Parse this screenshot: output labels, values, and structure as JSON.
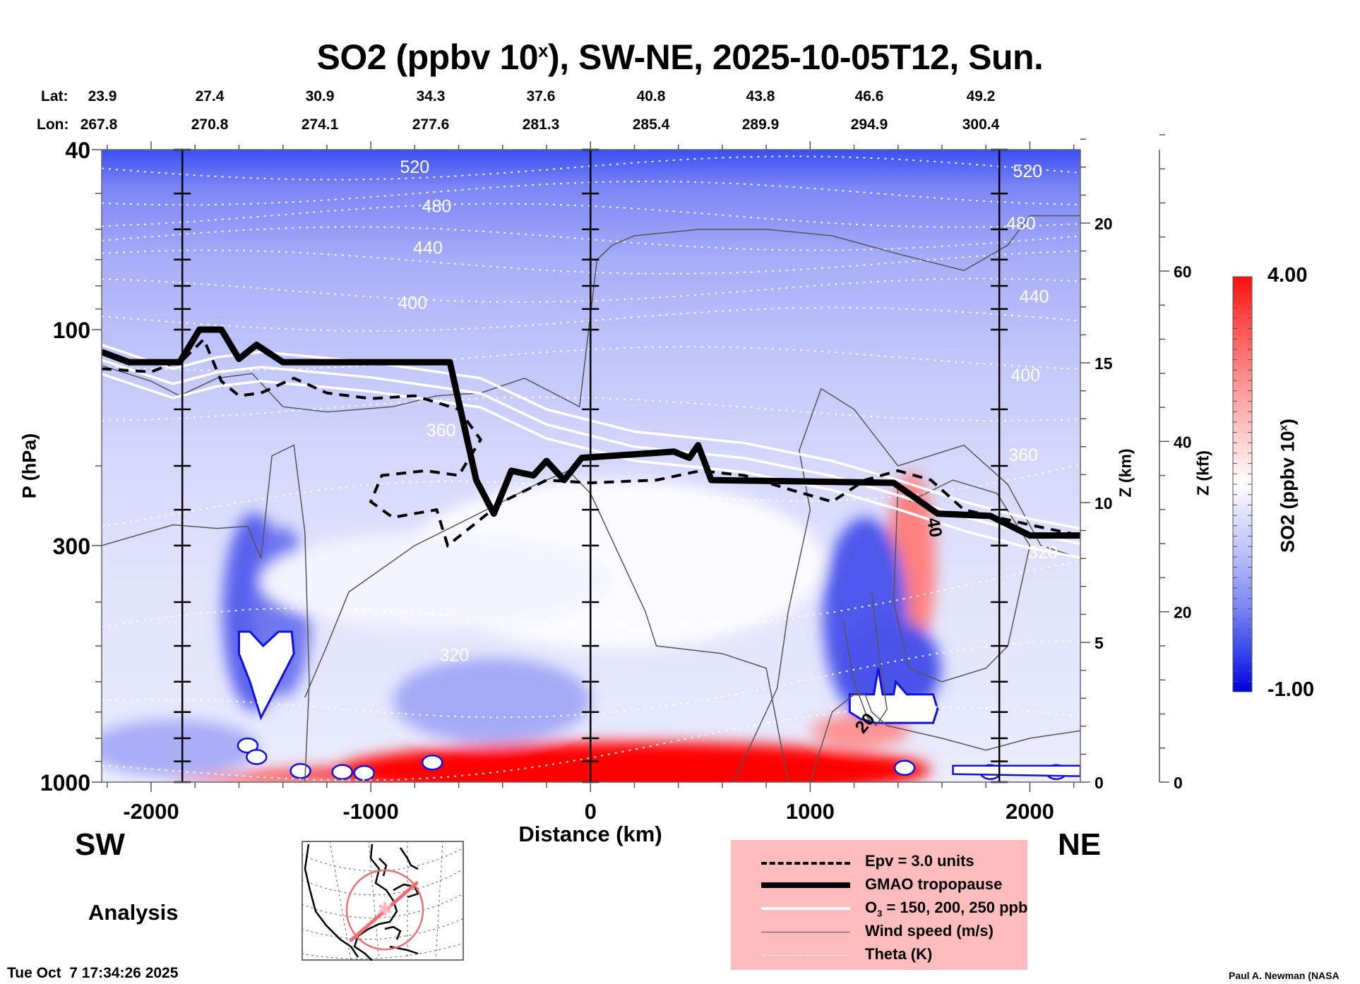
{
  "title": {
    "main": "SO2 (ppbv 10",
    "sup": "x",
    "rest": "), SW-NE, 2025-10-05T12, Sun."
  },
  "coords": {
    "lat_label": "Lat:",
    "lon_label": "Lon:",
    "lat": [
      "23.9",
      "27.4",
      "30.9",
      "34.3",
      "37.6",
      "40.8",
      "43.8",
      "46.6",
      "49.2"
    ],
    "lon": [
      "267.8",
      "270.8",
      "274.1",
      "277.6",
      "281.3",
      "285.4",
      "289.9",
      "294.9",
      "300.4"
    ]
  },
  "chart_data": {
    "type": "heatmap",
    "title": "SO2 (ppbv 10^x), SW-NE, 2025-10-05T12, Sun.",
    "xlabel": "Distance (km)",
    "ylabel": "P (hPa)",
    "y2label": "Z (km)",
    "y3label": "Z (kft)",
    "xlim": [
      -2225,
      2230
    ],
    "ylim": [
      1000,
      40
    ],
    "yscale": "log",
    "x_ticks": [
      -2000,
      -1000,
      0,
      1000,
      2000
    ],
    "x_tick_labels": [
      "-2000",
      "-1000",
      "0",
      "1000",
      "2000"
    ],
    "y_ticks": [
      40,
      100,
      300,
      1000
    ],
    "y_tick_labels": [
      "40",
      "100",
      "300",
      "1000"
    ],
    "z_km_ticks": [
      0,
      5,
      10,
      15,
      20
    ],
    "z_km_tick_labels": [
      "0",
      "5",
      "10",
      "15",
      "20"
    ],
    "z_kft_ticks": [
      0,
      20,
      40,
      60
    ],
    "z_kft_tick_labels": [
      "0",
      "20",
      "40",
      "60"
    ],
    "profile_lines_km": [
      -1858,
      0,
      1861
    ],
    "colorbar": {
      "label": "SO2 (ppbv 10",
      "label_sup": "x",
      "label_end": ")",
      "min": -1.0,
      "max": 4.0,
      "min_label": "-1.00",
      "max_label": "4.00",
      "low_color": "#0000dd",
      "mid_color": "#ffffff",
      "high_color": "#ff0000"
    },
    "theta_labels": [
      {
        "text": "520",
        "x": -800,
        "p": 45
      },
      {
        "text": "480",
        "x": -700,
        "p": 55
      },
      {
        "text": "440",
        "x": -740,
        "p": 68
      },
      {
        "text": "400",
        "x": -810,
        "p": 90
      },
      {
        "text": "360",
        "x": -680,
        "p": 172
      },
      {
        "text": "320",
        "x": -620,
        "p": 540
      },
      {
        "text": "520",
        "x": 1990,
        "p": 46
      },
      {
        "text": "480",
        "x": 1960,
        "p": 60
      },
      {
        "text": "440",
        "x": 2020,
        "p": 87
      },
      {
        "text": "400",
        "x": 1980,
        "p": 130
      },
      {
        "text": "360",
        "x": 1970,
        "p": 195
      },
      {
        "text": "320",
        "x": 2060,
        "p": 320
      }
    ],
    "wind_labels": [
      {
        "text": "40",
        "x": 1540,
        "p": 275
      },
      {
        "text": "20",
        "x": 1270,
        "p": 755
      }
    ],
    "features": [
      {
        "name": "surface SO2 maximum",
        "x_range": [
          -1900,
          1400
        ],
        "p_range": [
          850,
          1000
        ],
        "value": 3.5
      },
      {
        "name": "upper tropospheric SO2 plume",
        "x_range": [
          1380,
          1520
        ],
        "p_range": [
          220,
          520
        ],
        "value": 2.2
      },
      {
        "name": "low SO2 minimum west",
        "x_range": [
          -1600,
          -1350
        ],
        "p_range": [
          430,
          700
        ],
        "value": -1.0
      },
      {
        "name": "low SO2 minimum east",
        "x_range": [
          1150,
          1550
        ],
        "p_range": [
          560,
          760
        ],
        "value": -1.0
      }
    ],
    "tropopause_p": [
      {
        "x": -2225,
        "p": 112
      },
      {
        "x": -2100,
        "p": 118
      },
      {
        "x": -1870,
        "p": 118
      },
      {
        "x": -1780,
        "p": 100
      },
      {
        "x": -1680,
        "p": 100
      },
      {
        "x": -1600,
        "p": 116
      },
      {
        "x": -1520,
        "p": 108
      },
      {
        "x": -1400,
        "p": 118
      },
      {
        "x": -640,
        "p": 118
      },
      {
        "x": -520,
        "p": 215
      },
      {
        "x": -440,
        "p": 255
      },
      {
        "x": -360,
        "p": 205
      },
      {
        "x": -260,
        "p": 210
      },
      {
        "x": -200,
        "p": 195
      },
      {
        "x": -120,
        "p": 215
      },
      {
        "x": -40,
        "p": 192
      },
      {
        "x": 380,
        "p": 186
      },
      {
        "x": 450,
        "p": 192
      },
      {
        "x": 490,
        "p": 180
      },
      {
        "x": 550,
        "p": 215
      },
      {
        "x": 1380,
        "p": 218
      },
      {
        "x": 1580,
        "p": 255
      },
      {
        "x": 1820,
        "p": 258
      },
      {
        "x": 2000,
        "p": 285
      },
      {
        "x": 2230,
        "p": 285
      }
    ],
    "legend": [
      {
        "label": "Epv = 3.0 units",
        "style": "dashed"
      },
      {
        "label": "GMAO tropopause",
        "style": "thick"
      },
      {
        "label": "O3 = 150, 200, 250 ppb",
        "style": "white"
      },
      {
        "label": "Wind speed (m/s)",
        "style": "thin"
      },
      {
        "label": "Theta (K)",
        "style": "dotted"
      }
    ]
  },
  "labels": {
    "sw": "SW",
    "ne": "NE",
    "analysis": "Analysis",
    "timestamp": "Tue Oct  7 17:34:26 2025",
    "credit": "Paul A. Newman (NASA",
    "legend_o3_pre": "O",
    "legend_o3_sub": "3",
    "legend_o3_post": " = 150, 200, 250 ppb"
  },
  "colors": {
    "legend_bg": "#ffbcbc",
    "map_track": "#f07070"
  }
}
